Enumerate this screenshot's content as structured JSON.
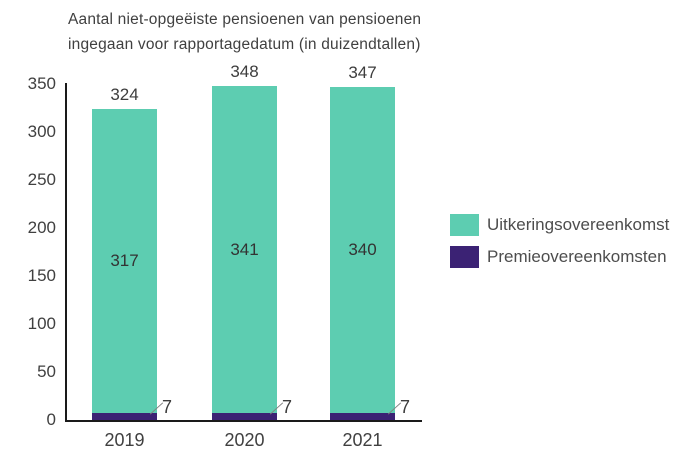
{
  "title": {
    "line1": "Aantal niet-opgeëiste pensioenen van pensioenen",
    "line2": "ingegaan voor rapportagedatum (in duizendtallen)"
  },
  "colors": {
    "teal": "#5DCDB1",
    "purple": "#3B2274",
    "axis": "#1a1a1a",
    "text": "#404040",
    "leader": "#808080"
  },
  "chart_data": {
    "type": "bar",
    "stacked": true,
    "title": "Aantal niet-opgeëiste pensioenen van pensioenen ingegaan voor rapportagedatum (in duizendtallen)",
    "categories": [
      "2019",
      "2020",
      "2021"
    ],
    "series": [
      {
        "name": "Uitkeringsovereenkomst",
        "color": "#5DCDB1",
        "values": [
          317,
          341,
          340
        ]
      },
      {
        "name": "Premieovereenkomsten",
        "color": "#3B2274",
        "values": [
          7,
          7,
          7
        ]
      }
    ],
    "totals": [
      324,
      348,
      347
    ],
    "segment_labels": {
      "uitkeringsovereenkomst": [
        "317",
        "341",
        "340"
      ],
      "premieovereenkomsten": [
        "7",
        "7",
        "7"
      ]
    },
    "xlabel": "",
    "ylabel": "",
    "ylim": [
      0,
      350
    ],
    "yticks": [
      0,
      50,
      100,
      150,
      200,
      250,
      300,
      350
    ],
    "grid": false,
    "legend_position": "right"
  }
}
